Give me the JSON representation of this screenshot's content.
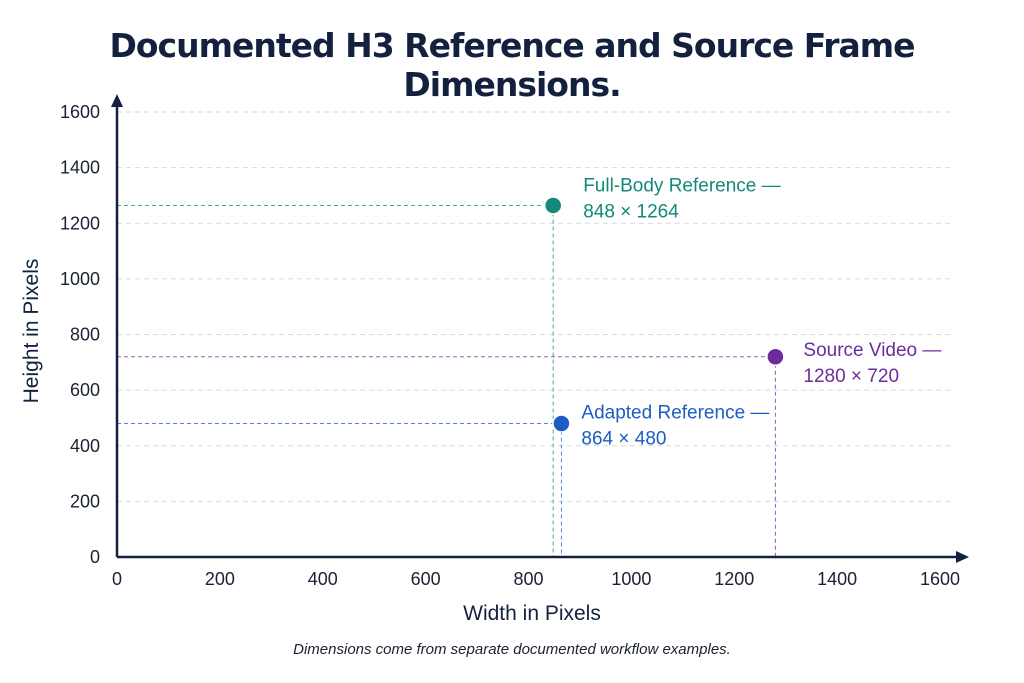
{
  "chart_data": {
    "type": "scatter",
    "title": "Documented H3 Reference and Source Frame Dimensions.",
    "xlabel": "Width in Pixels",
    "ylabel": "Height in Pixels",
    "xlim": [
      0,
      1600
    ],
    "ylim": [
      0,
      1600
    ],
    "xticks": [
      0,
      200,
      400,
      600,
      800,
      1000,
      1200,
      1400,
      1600
    ],
    "yticks": [
      0,
      200,
      400,
      600,
      800,
      1000,
      1200,
      1400,
      1600
    ],
    "grid": true,
    "points": [
      {
        "x": 848,
        "y": 1264,
        "label": "Full-Body Reference —",
        "value_label": "848 × 1264",
        "color": "#12897a"
      },
      {
        "x": 1280,
        "y": 720,
        "label": "Source Video —",
        "value_label": "1280 × 720",
        "color": "#6d2c9c"
      },
      {
        "x": 864,
        "y": 480,
        "label": "Adapted Reference —",
        "value_label": "864 × 480",
        "color": "#1c5cc4"
      }
    ]
  },
  "caption": "Dimensions come from separate documented workflow examples."
}
